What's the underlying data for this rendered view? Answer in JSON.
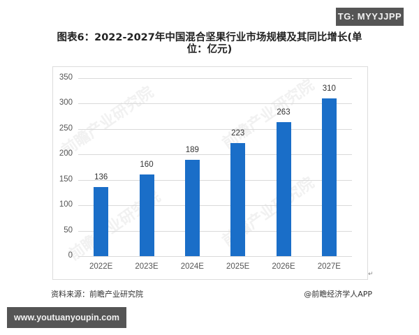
{
  "badges": {
    "top_right": "TG: MYYJJPP",
    "bottom_left": "www.youtuanyoupin.com"
  },
  "chart_data": {
    "type": "bar",
    "title": "图表6：2022-2027年中国混合坚果行业市场规模及其同比增长(单位：亿元)",
    "categories": [
      "2022E",
      "2023E",
      "2024E",
      "2025E",
      "2026E",
      "2027E"
    ],
    "values": [
      136,
      160,
      189,
      223,
      263,
      310
    ],
    "xlabel": "",
    "ylabel": "",
    "ylim": [
      0,
      350
    ],
    "yticks": [
      0,
      50,
      100,
      150,
      200,
      250,
      300,
      350
    ],
    "grid": true,
    "legend": "none",
    "bar_color": "#1a6ec8",
    "data_labels": [
      "136",
      "160",
      "189",
      "223",
      "263",
      "310"
    ]
  },
  "footer": {
    "source": "资料来源：前瞻产业研究院",
    "credit": "@前瞻经济学人APP"
  },
  "watermark": "前瞻产业研究院"
}
